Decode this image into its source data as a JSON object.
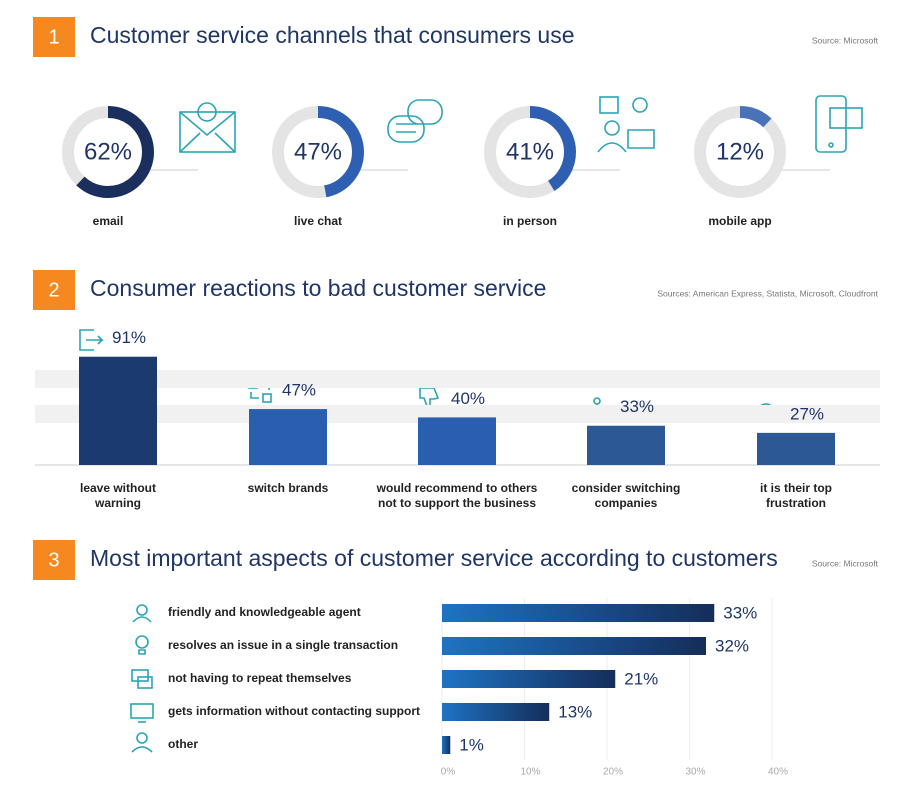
{
  "chart_data": [
    {
      "type": "donut",
      "number": "1",
      "title": "Customer service channels that consumers use",
      "source": "Source: Microsoft",
      "categories": [
        "email",
        "live chat",
        "in person",
        "mobile app"
      ],
      "values": [
        62,
        47,
        41,
        12
      ],
      "value_labels": [
        "62%",
        "47%",
        "41%",
        "12%"
      ],
      "colors": [
        "#1b2f5e",
        "#2f5fb3",
        "#2f5fb3",
        "#4a72b8"
      ],
      "track_color": "#e4e4e4"
    },
    {
      "type": "bar",
      "number": "2",
      "title": "Consumer reactions to bad customer service",
      "source": "Sources: American Express, Statista, Microsoft, Cloudfront",
      "categories": [
        "leave without warning",
        "switch brands",
        "would recommend to others not to support the business",
        "consider switching companies",
        "it is their top frustration"
      ],
      "values": [
        91,
        47,
        40,
        33,
        27
      ],
      "value_labels": [
        "91%",
        "47%",
        "40%",
        "33%",
        "27%"
      ],
      "colors": [
        "#1b3a6e",
        "#2a5fb0",
        "#2a5fb0",
        "#2c5996",
        "#2c5996"
      ]
    },
    {
      "type": "barh",
      "number": "3",
      "title": "Most important aspects of customer service according to customers",
      "source": "Source: Microsoft",
      "categories": [
        "friendly and knowledgeable agent",
        "resolves an issue in a single transaction",
        "not having to repeat themselves",
        "gets information without contacting support",
        "other"
      ],
      "values": [
        33,
        32,
        21,
        13,
        1
      ],
      "value_labels": [
        "33%",
        "32%",
        "21%",
        "13%",
        "1%"
      ],
      "xlim": [
        0,
        40
      ],
      "xticks": [
        {
          "value": 0,
          "label": "0%"
        },
        {
          "value": 10,
          "label": "10%"
        },
        {
          "value": 20,
          "label": "20%"
        },
        {
          "value": 30,
          "label": "30%"
        },
        {
          "value": 40,
          "label": "40%"
        }
      ],
      "grid": true
    }
  ]
}
